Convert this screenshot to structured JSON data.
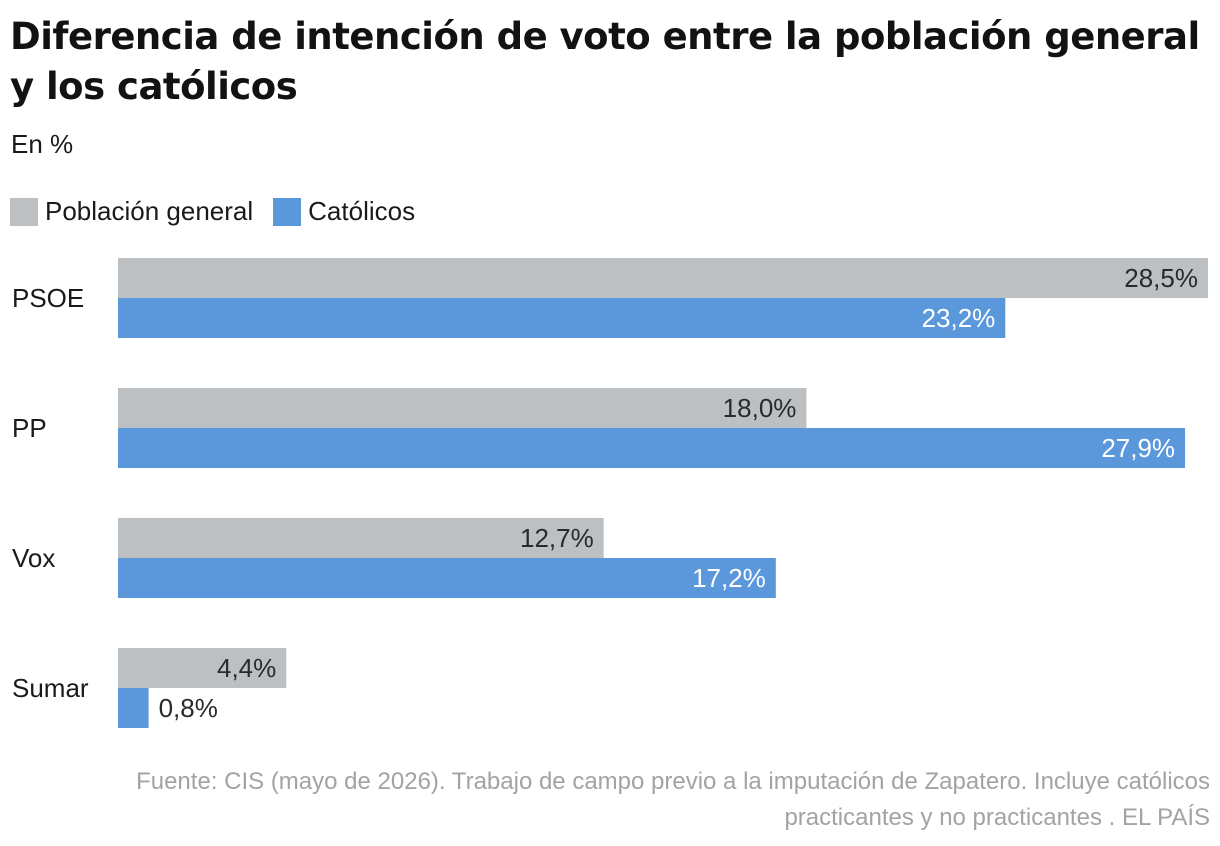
{
  "title": "Diferencia de intención de voto entre la población general y los católicos",
  "subtitle": "En %",
  "source": "Fuente: CIS (mayo de 2026). Trabajo de campo previo a la imputación de Zapatero. Incluye católicos practicantes y no practicantes . EL PAÍS",
  "colors": {
    "general": "#bdc0c3",
    "catolicos": "#5b97db",
    "label_dark": "#2a2a2a",
    "label_light": "#ffffff"
  },
  "chart_data": {
    "type": "bar",
    "orientation": "horizontal",
    "categories": [
      "PSOE",
      "PP",
      "Vox",
      "Sumar"
    ],
    "series": [
      {
        "name": "Población general",
        "values": [
          28.5,
          18.0,
          12.7,
          4.4
        ],
        "labels": [
          "28,5%",
          "18,0%",
          "12,7%",
          "4,4%"
        ]
      },
      {
        "name": "Católicos",
        "values": [
          23.2,
          27.9,
          17.2,
          0.8
        ],
        "labels": [
          "23,2%",
          "27,9%",
          "17,2%",
          "0,8%"
        ]
      }
    ],
    "xlim": [
      0,
      28.5
    ],
    "grid": false,
    "legend_position": "top-left"
  }
}
